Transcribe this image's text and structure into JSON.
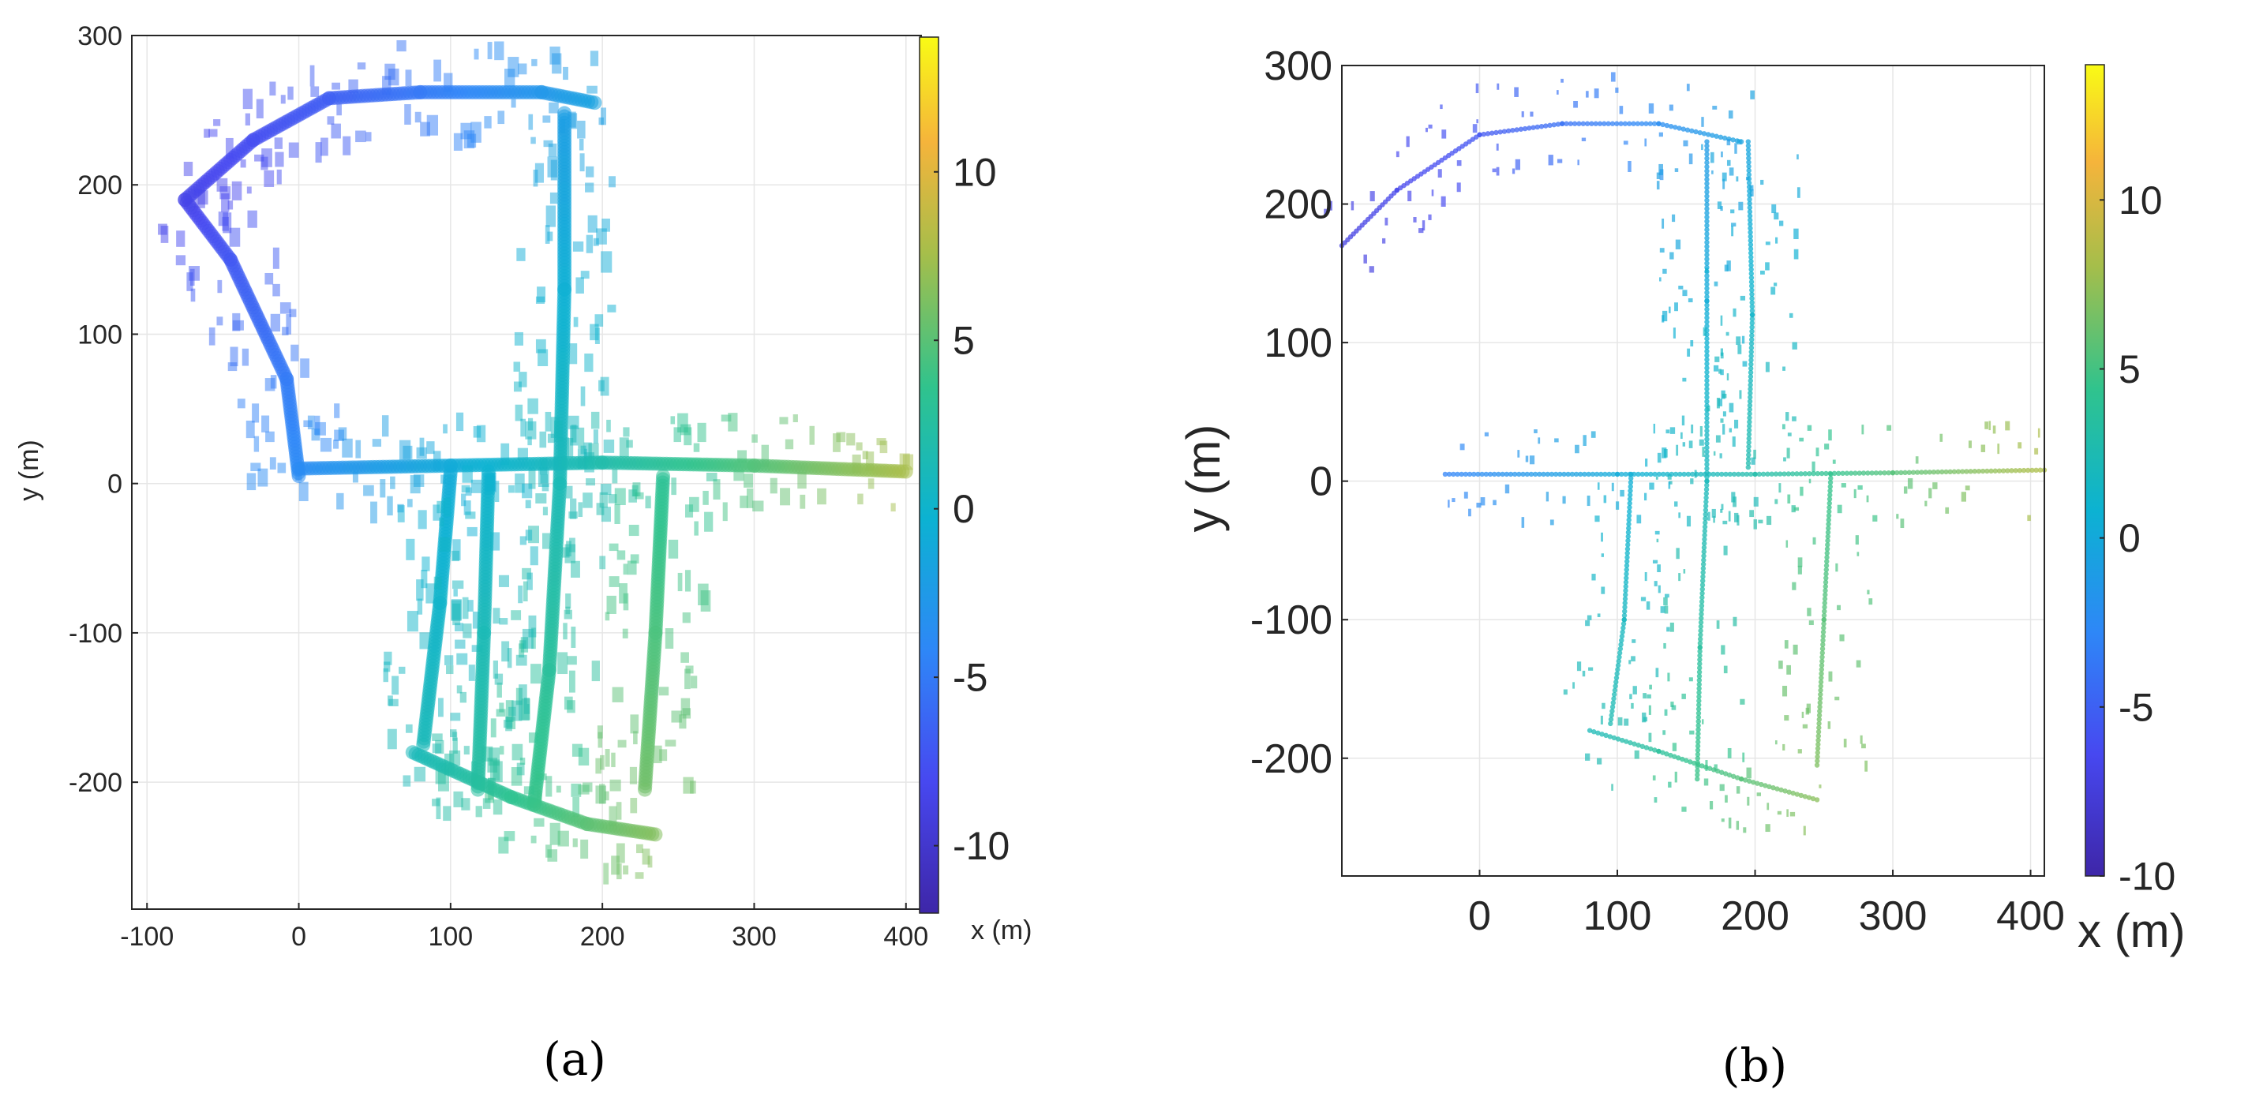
{
  "chart_data": [
    {
      "type": "scatter",
      "panel_label": "(a)",
      "xlim": [
        -110,
        410
      ],
      "ylim": [
        -285,
        300
      ],
      "x_ticks": [
        -100,
        0,
        100,
        200,
        300,
        400
      ],
      "y_ticks": [
        -200,
        -100,
        0,
        100,
        200,
        300
      ],
      "ylabel": "y (m)",
      "grid": true,
      "colorbar": {
        "label": "x (m)",
        "range": [
          -12,
          14
        ],
        "ticks": [
          -10,
          -5,
          0,
          5,
          10
        ]
      },
      "map_paths": [
        {
          "name": "nw-road",
          "points": [
            [
              0,
              5
            ],
            [
              -8,
              70
            ],
            [
              -45,
              150
            ],
            [
              -75,
              190
            ],
            [
              -30,
              230
            ],
            [
              20,
              258
            ],
            [
              80,
              262
            ],
            [
              160,
              262
            ],
            [
              195,
              255
            ]
          ]
        },
        {
          "name": "north-avenue",
          "points": [
            [
              175,
              248
            ],
            [
              175,
              130
            ],
            [
              172,
              0
            ],
            [
              165,
              -125
            ],
            [
              155,
              -215
            ]
          ]
        },
        {
          "name": "main-street",
          "points": [
            [
              0,
              10
            ],
            [
              100,
              12
            ],
            [
              200,
              14
            ],
            [
              300,
              12
            ],
            [
              400,
              8
            ]
          ]
        },
        {
          "name": "west-street",
          "points": [
            [
              100,
              8
            ],
            [
              93,
              -80
            ],
            [
              82,
              -175
            ]
          ]
        },
        {
          "name": "mid-street",
          "points": [
            [
              125,
              8
            ],
            [
              122,
              -100
            ],
            [
              118,
              -205
            ]
          ]
        },
        {
          "name": "east-avenue",
          "points": [
            [
              240,
              5
            ],
            [
              235,
              -100
            ],
            [
              228,
              -205
            ]
          ]
        },
        {
          "name": "south-road",
          "points": [
            [
              75,
              -180
            ],
            [
              140,
              -210
            ],
            [
              190,
              -228
            ],
            [
              235,
              -235
            ]
          ]
        }
      ],
      "elevation_range": [
        -12,
        14
      ]
    },
    {
      "type": "scatter",
      "panel_label": "(b)",
      "xlim": [
        -100,
        410
      ],
      "ylim": [
        -285,
        300
      ],
      "x_ticks": [
        0,
        100,
        200,
        300,
        400
      ],
      "y_ticks": [
        -200,
        -100,
        0,
        100,
        200,
        300
      ],
      "ylabel": "y (m)",
      "grid": true,
      "colorbar": {
        "label": "x (m)",
        "range": [
          -10,
          14
        ],
        "ticks": [
          -10,
          -5,
          0,
          5,
          10
        ]
      },
      "map_paths": [
        {
          "name": "nw-road",
          "points": [
            [
              -100,
              170
            ],
            [
              -60,
              210
            ],
            [
              0,
              250
            ],
            [
              60,
              258
            ],
            [
              130,
              258
            ],
            [
              190,
              245
            ]
          ]
        },
        {
          "name": "north-avenue",
          "points": [
            [
              165,
              245
            ],
            [
              165,
              130
            ],
            [
              165,
              0
            ],
            [
              160,
              -120
            ],
            [
              158,
              -215
            ]
          ]
        },
        {
          "name": "north-side",
          "points": [
            [
              195,
              245
            ],
            [
              198,
              120
            ],
            [
              195,
              10
            ]
          ]
        },
        {
          "name": "main-street",
          "points": [
            [
              -25,
              5
            ],
            [
              100,
              5
            ],
            [
              200,
              5
            ],
            [
              300,
              6
            ],
            [
              410,
              8
            ]
          ]
        },
        {
          "name": "west-street",
          "points": [
            [
              110,
              5
            ],
            [
              105,
              -100
            ],
            [
              95,
              -175
            ]
          ]
        },
        {
          "name": "east-avenue",
          "points": [
            [
              255,
              5
            ],
            [
              250,
              -100
            ],
            [
              245,
              -205
            ]
          ]
        },
        {
          "name": "south-road",
          "points": [
            [
              80,
              -180
            ],
            [
              130,
              -195
            ],
            [
              190,
              -215
            ],
            [
              245,
              -230
            ]
          ]
        }
      ],
      "elevation_range": [
        -10,
        14
      ]
    }
  ]
}
